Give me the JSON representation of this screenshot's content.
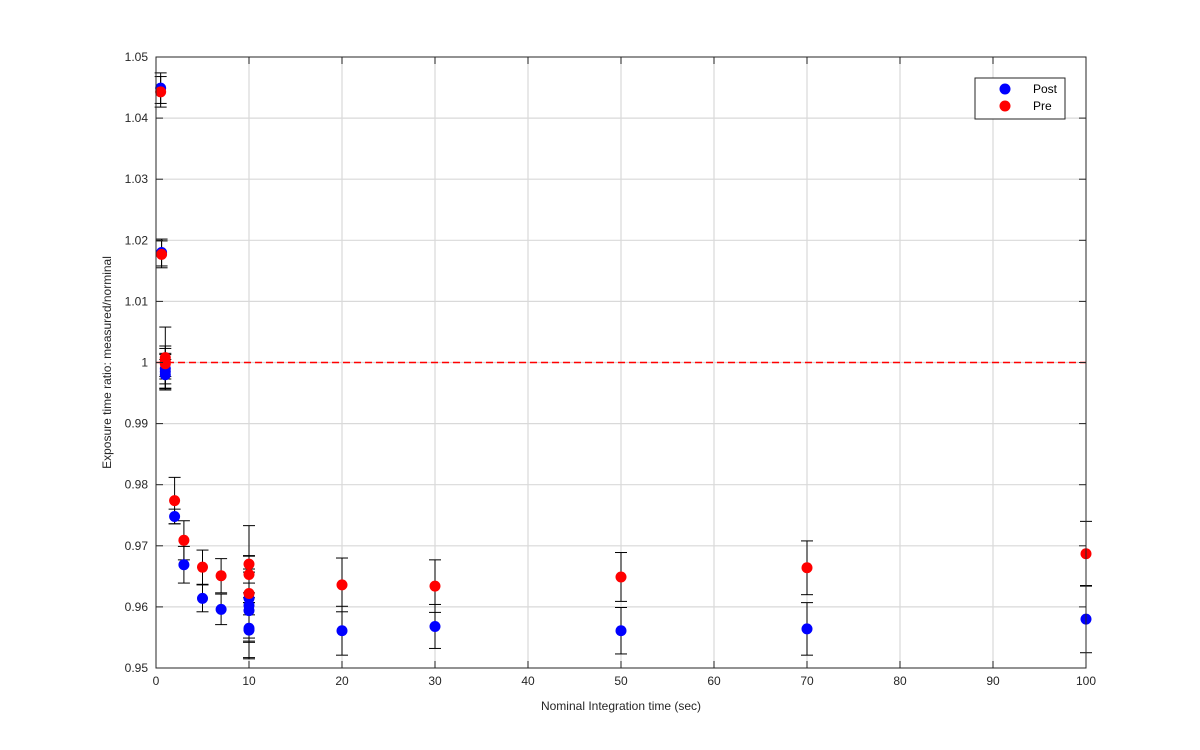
{
  "chart_data": {
    "type": "scatter",
    "xlabel": "Nominal Integration time (sec)",
    "ylabel": "Exposure time ratio: measured/norminal",
    "xlim": [
      0,
      100
    ],
    "ylim": [
      0.95,
      1.05
    ],
    "xticks": [
      0,
      10,
      20,
      30,
      40,
      50,
      60,
      70,
      80,
      90,
      100
    ],
    "yticks": [
      0.95,
      0.96,
      0.97,
      0.98,
      0.99,
      1.0,
      1.01,
      1.02,
      1.03,
      1.04,
      1.05
    ],
    "xtick_labels": [
      "0",
      "10",
      "20",
      "30",
      "40",
      "50",
      "60",
      "70",
      "80",
      "90",
      "100"
    ],
    "ytick_labels": [
      "0.95",
      "0.96",
      "0.97",
      "0.98",
      "0.99",
      "1",
      "1.01",
      "1.02",
      "1.03",
      "1.04",
      "1.05"
    ],
    "grid": true,
    "legend_position": "top-right",
    "reference_line": {
      "y": 1.0,
      "style": "dashed",
      "color": "#ff0000"
    },
    "series": [
      {
        "name": "Post",
        "color": "#0000ff",
        "points": [
          {
            "x": 0.5,
            "y": 1.0449,
            "err": 0.0025
          },
          {
            "x": 0.6,
            "y": 1.018,
            "err": 0.0022
          },
          {
            "x": 1,
            "y": 0.999,
            "err": 0.0025
          },
          {
            "x": 1,
            "y": 0.9985,
            "err": 0.0028
          },
          {
            "x": 1,
            "y": 0.998,
            "err": 0.0025
          },
          {
            "x": 2,
            "y": 0.9748,
            "err": 0.0012
          },
          {
            "x": 3,
            "y": 0.9669,
            "err": 0.003
          },
          {
            "x": 5,
            "y": 0.9614,
            "err": 0.0022
          },
          {
            "x": 7,
            "y": 0.9596,
            "err": 0.0025
          },
          {
            "x": 10,
            "y": 0.9614,
            "err": 0.007
          },
          {
            "x": 10,
            "y": 0.9602,
            "err": 0.006
          },
          {
            "x": 10,
            "y": 0.9594,
            "err": 0.0045
          },
          {
            "x": 10,
            "y": 0.9565,
            "err": 0.005
          },
          {
            "x": 10,
            "y": 0.9562,
            "err": 0.0045
          },
          {
            "x": 20,
            "y": 0.9561,
            "err": 0.004
          },
          {
            "x": 30,
            "y": 0.9568,
            "err": 0.0036
          },
          {
            "x": 50,
            "y": 0.9561,
            "err": 0.0038
          },
          {
            "x": 70,
            "y": 0.9564,
            "err": 0.0043
          },
          {
            "x": 100,
            "y": 0.958,
            "err": 0.0055
          }
        ]
      },
      {
        "name": "Pre",
        "color": "#ff0000",
        "points": [
          {
            "x": 0.5,
            "y": 1.0443,
            "err": 0.0025
          },
          {
            "x": 0.6,
            "y": 1.0177,
            "err": 0.0022
          },
          {
            "x": 1,
            "y": 1.0008,
            "err": 0.005
          },
          {
            "x": 1,
            "y": 1.0002,
            "err": 0.0025
          },
          {
            "x": 1,
            "y": 0.9998,
            "err": 0.0025
          },
          {
            "x": 2,
            "y": 0.9774,
            "err": 0.0038
          },
          {
            "x": 3,
            "y": 0.9709,
            "err": 0.0032
          },
          {
            "x": 5,
            "y": 0.9665,
            "err": 0.0028
          },
          {
            "x": 7,
            "y": 0.9651,
            "err": 0.0028
          },
          {
            "x": 10,
            "y": 0.967,
            "err": 0.0063
          },
          {
            "x": 10,
            "y": 0.9653,
            "err": 0.003
          },
          {
            "x": 10,
            "y": 0.9622,
            "err": 0.0035
          },
          {
            "x": 20,
            "y": 0.9636,
            "err": 0.0044
          },
          {
            "x": 30,
            "y": 0.9634,
            "err": 0.0043
          },
          {
            "x": 50,
            "y": 0.9649,
            "err": 0.004
          },
          {
            "x": 70,
            "y": 0.9664,
            "err": 0.0044
          },
          {
            "x": 100,
            "y": 0.9687,
            "err": 0.0053
          }
        ]
      }
    ]
  }
}
